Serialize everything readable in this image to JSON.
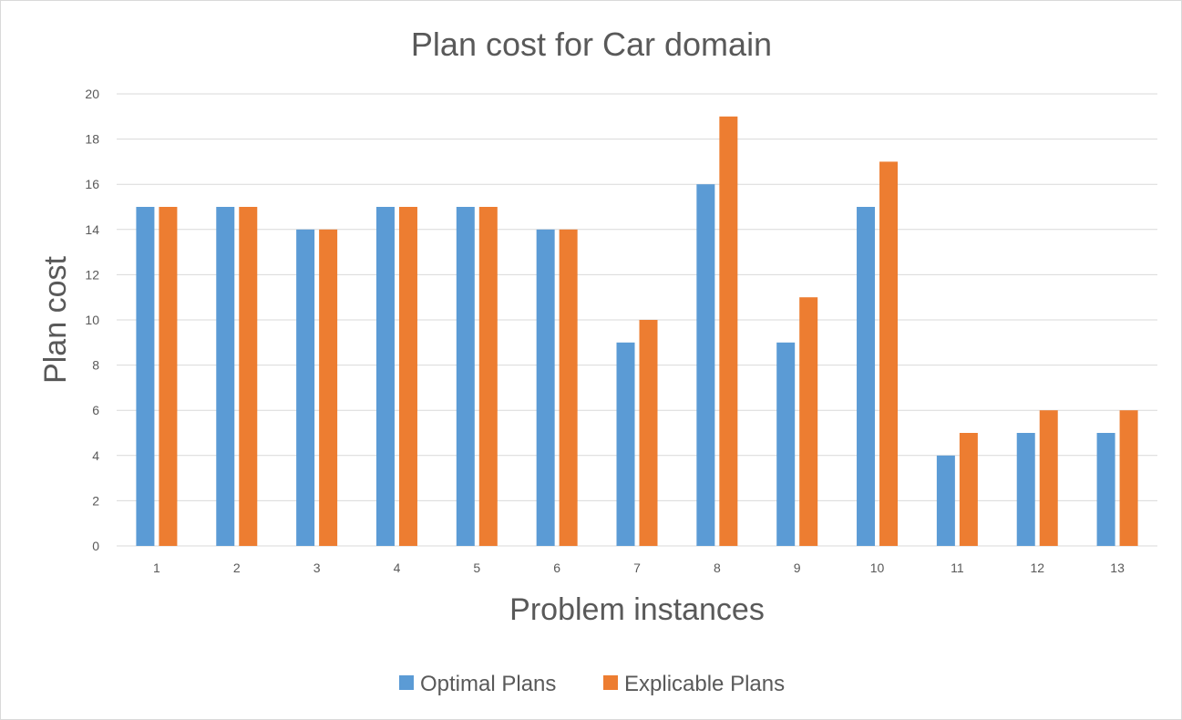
{
  "chart_data": {
    "type": "bar",
    "title": "Plan cost for Car domain",
    "xlabel": "Problem instances",
    "ylabel": "Plan cost",
    "categories": [
      "1",
      "2",
      "3",
      "4",
      "5",
      "6",
      "7",
      "8",
      "9",
      "10",
      "11",
      "12",
      "13"
    ],
    "series": [
      {
        "name": "Optimal Plans",
        "color": "#5B9BD5",
        "values": [
          15,
          15,
          14,
          15,
          15,
          14,
          9,
          16,
          9,
          15,
          4,
          5,
          5
        ]
      },
      {
        "name": "Explicable Plans",
        "color": "#ED7D31",
        "values": [
          15,
          15,
          14,
          15,
          15,
          14,
          10,
          19,
          11,
          17,
          5,
          6,
          6
        ]
      }
    ],
    "ylim": [
      0,
      20
    ],
    "yticks": [
      0,
      2,
      4,
      6,
      8,
      10,
      12,
      14,
      16,
      18,
      20
    ],
    "grid": true,
    "legend_position": "bottom"
  }
}
